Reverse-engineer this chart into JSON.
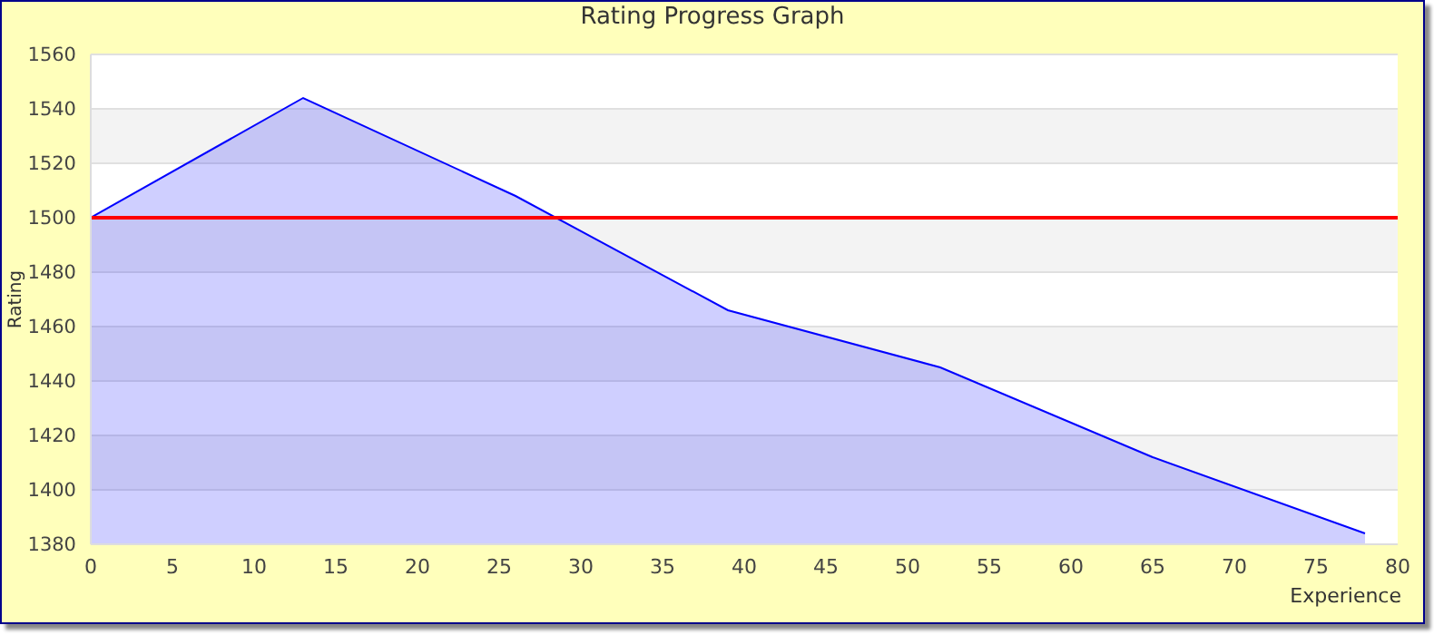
{
  "chart_data": {
    "type": "area",
    "title": "Rating Progress Graph",
    "xlabel": "Experience",
    "ylabel": "Rating",
    "x": [
      0,
      13,
      26,
      39,
      52,
      65,
      78
    ],
    "series": [
      {
        "color": "#0000ff",
        "values": [
          1500,
          1544,
          1508,
          1466,
          1445,
          1412,
          1384
        ]
      }
    ],
    "xlim": [
      0,
      80
    ],
    "xticks": [
      0,
      5,
      10,
      15,
      20,
      25,
      30,
      35,
      40,
      45,
      50,
      55,
      60,
      65,
      70,
      75,
      80
    ],
    "ylim": [
      1380,
      1560
    ],
    "yticks": [
      1380,
      1400,
      1420,
      1440,
      1460,
      1480,
      1500,
      1520,
      1540,
      1560
    ],
    "grid": "y",
    "ref_lines": [
      {
        "axis": "y",
        "value": 1500,
        "color": "#ff0000"
      }
    ]
  }
}
